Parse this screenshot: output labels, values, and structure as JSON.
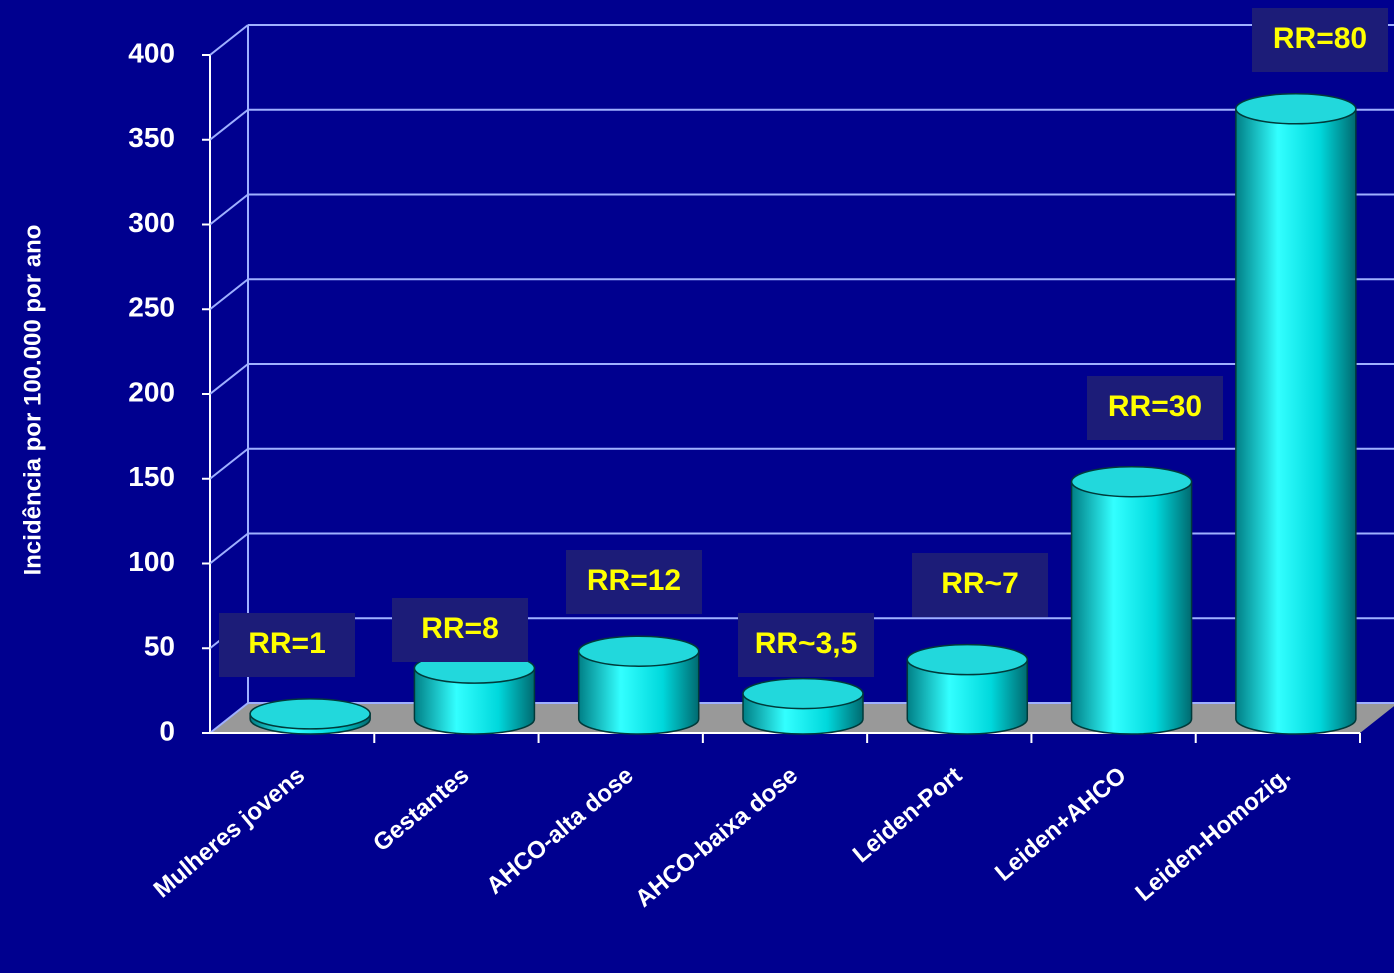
{
  "chart_data": {
    "type": "bar",
    "style": "3d-cylinder",
    "y_label": "Incidência por 100.000 por ano",
    "categories": [
      "Mulheres jovens",
      "Gestantes",
      "AHCO-alta dose",
      "AHCO-baixa dose",
      "Leiden-Port",
      "Leiden+AHCO",
      "Leiden-Homozig."
    ],
    "values": [
      3,
      30,
      40,
      15,
      35,
      140,
      360
    ],
    "annotations": [
      "RR=1",
      "RR=8",
      "RR=12",
      "RR~3,5",
      "RR~7",
      "RR=30",
      "RR=80"
    ],
    "color": "#00e5e5",
    "ylim": [
      0,
      400
    ],
    "yticks": [
      0,
      50,
      100,
      150,
      200,
      250,
      300,
      350,
      400
    ],
    "grid": true
  }
}
